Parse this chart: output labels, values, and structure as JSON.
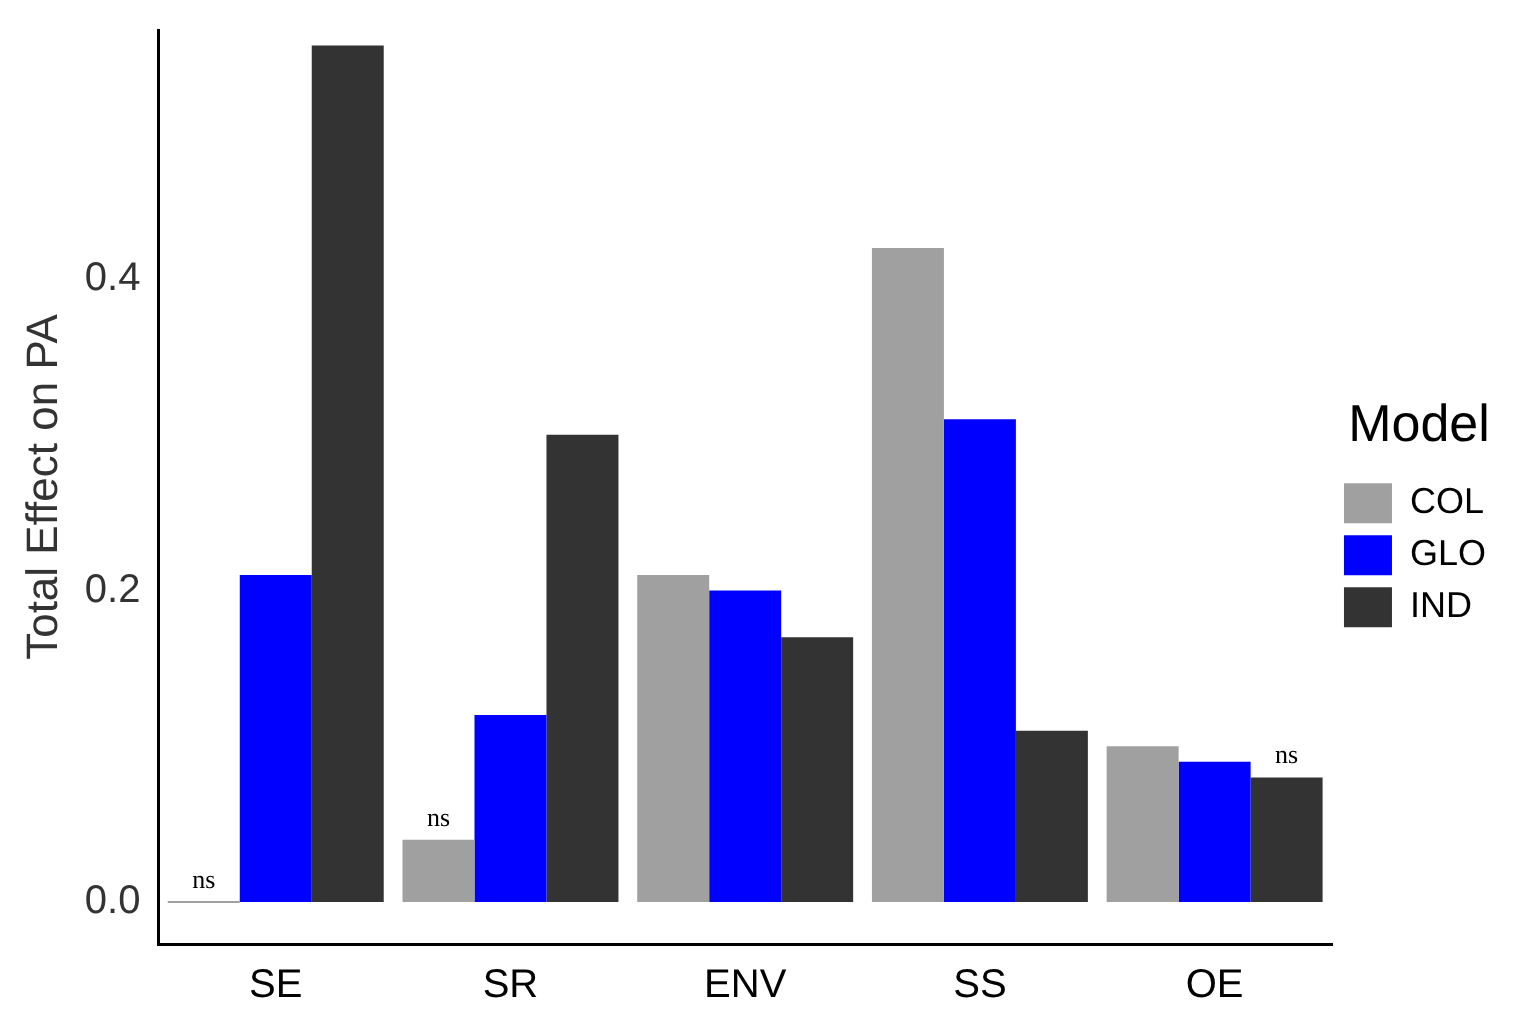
{
  "chart_data": {
    "type": "bar",
    "ylabel": "Total Effect on PA",
    "legend_title": "Model",
    "categories": [
      "SE",
      "SR",
      "ENV",
      "SS",
      "OE"
    ],
    "series": [
      {
        "name": "COL",
        "color": "#a0a0a0",
        "values": [
          0.0,
          0.04,
          0.21,
          0.42,
          0.1
        ],
        "value_labels": [
          "ns",
          "ns",
          null,
          null,
          null
        ]
      },
      {
        "name": "GLO",
        "color": "#0000ff",
        "values": [
          0.21,
          0.12,
          0.2,
          0.31,
          0.09
        ]
      },
      {
        "name": "IND",
        "color": "#333333",
        "values": [
          0.55,
          0.3,
          0.17,
          0.11,
          0.08
        ],
        "value_labels": [
          null,
          null,
          null,
          null,
          "ns"
        ]
      }
    ],
    "ylim": [
      -0.027,
      0.56
    ],
    "yticks": [
      {
        "value": 0,
        "label": "0.0"
      },
      {
        "value": 0.2,
        "label": "0.2"
      },
      {
        "value": 0.4,
        "label": "0.4"
      }
    ],
    "grid": false,
    "legend": "right"
  }
}
